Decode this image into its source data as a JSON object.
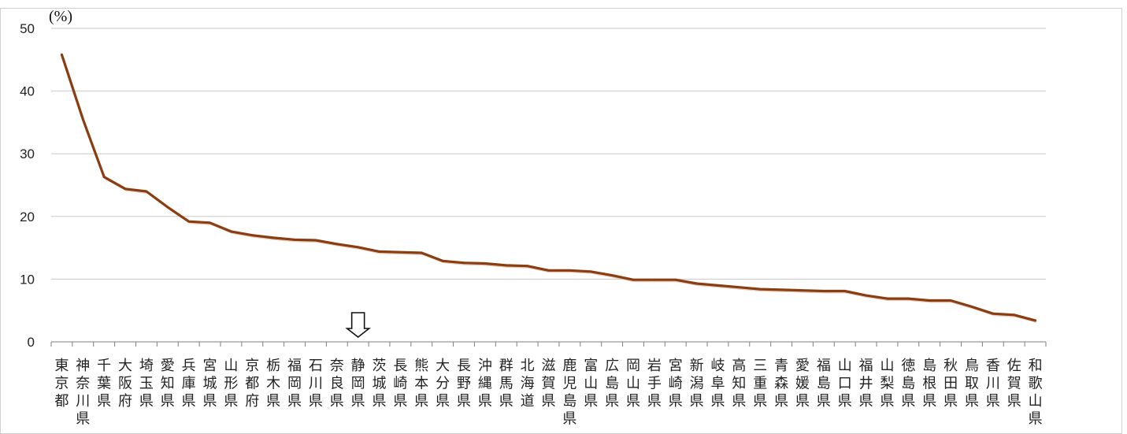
{
  "chart_data": {
    "type": "line",
    "unit_label": "(%)",
    "ylim": [
      0,
      50
    ],
    "y_ticks": [
      "0",
      "10",
      "20",
      "30",
      "40",
      "50"
    ],
    "y_tick_values": [
      0,
      10,
      20,
      30,
      40,
      50
    ],
    "grid": true,
    "highlight_marker": "down-arrow",
    "highlight_category": "静岡県",
    "colors": {
      "line": "#8b3d12",
      "grid": "#c8c8c8",
      "axis": "#7f7f7f"
    },
    "categories": [
      "東京都",
      "神奈川県",
      "千葉県",
      "大阪府",
      "埼玉県",
      "愛知県",
      "兵庫県",
      "宮城県",
      "山形県",
      "京都府",
      "栃木県",
      "福岡県",
      "石川県",
      "奈良県",
      "静岡県",
      "茨城県",
      "長崎県",
      "熊本県",
      "大分県",
      "長野県",
      "沖縄県",
      "群馬県",
      "北海道",
      "滋賀県",
      "鹿児島県",
      "富山県",
      "広島県",
      "岡山県",
      "岩手県",
      "宮崎県",
      "新潟県",
      "岐阜県",
      "高知県",
      "三重県",
      "青森県",
      "愛媛県",
      "福島県",
      "山口県",
      "福井県",
      "山梨県",
      "徳島県",
      "島根県",
      "秋田県",
      "鳥取県",
      "香川県",
      "佐賀県",
      "和歌山県"
    ],
    "values": [
      45.8,
      35.5,
      26.3,
      24.4,
      24.0,
      21.5,
      19.2,
      19.0,
      17.6,
      17.0,
      16.6,
      16.3,
      16.2,
      15.6,
      15.1,
      14.4,
      14.3,
      14.2,
      12.9,
      12.6,
      12.5,
      12.2,
      12.1,
      11.4,
      11.4,
      11.2,
      10.6,
      9.9,
      9.9,
      9.9,
      9.3,
      9.0,
      8.7,
      8.4,
      8.3,
      8.2,
      8.1,
      8.1,
      7.4,
      6.9,
      6.9,
      6.6,
      6.6,
      5.6,
      4.5,
      4.3,
      3.4
    ],
    "series": [
      {
        "values": [
          45.8,
          35.5,
          26.3,
          24.4,
          24.0,
          21.5,
          19.2,
          19.0,
          17.6,
          17.0,
          16.6,
          16.3,
          16.2,
          15.6,
          15.1,
          14.4,
          14.3,
          14.2,
          12.9,
          12.6,
          12.5,
          12.2,
          12.1,
          11.4,
          11.4,
          11.2,
          10.6,
          9.9,
          9.9,
          9.9,
          9.3,
          9.0,
          8.7,
          8.4,
          8.3,
          8.2,
          8.1,
          8.1,
          7.4,
          6.9,
          6.9,
          6.6,
          6.6,
          5.6,
          4.5,
          4.3,
          3.4
        ]
      }
    ]
  }
}
